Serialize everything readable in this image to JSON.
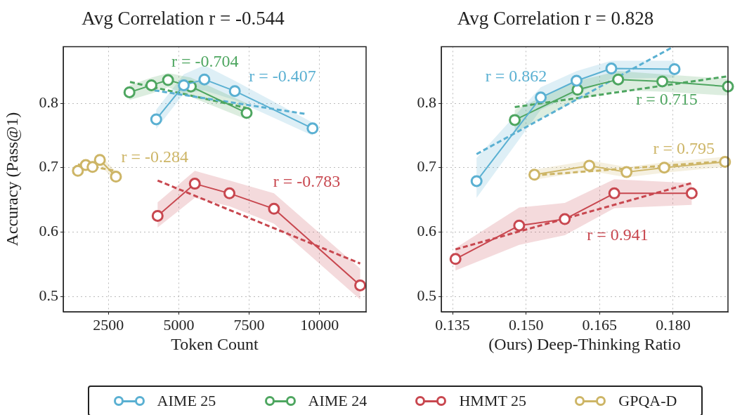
{
  "chart_data": [
    {
      "type": "line",
      "title": "Avg Correlation r = -0.544",
      "xlabel": "Token Count",
      "ylabel": "Accuracy (Pass@1)",
      "xlim": [
        900,
        11650
      ],
      "xticks": [
        2500,
        5000,
        7500,
        10000
      ],
      "ylim": [
        0.476,
        0.888
      ],
      "yticks": [
        0.5,
        0.6,
        0.7,
        0.8
      ],
      "grid": true,
      "legend": "bottom",
      "marker": "circle",
      "line_style": "solid",
      "series": [
        {
          "name": "AIME 25",
          "color": "#5ab0d2",
          "x": [
            4200,
            5180,
            5910,
            6990,
            9750
          ],
          "values": [
            0.775,
            0.828,
            0.837,
            0.819,
            0.761
          ],
          "lower": [
            0.76,
            0.815,
            0.82,
            0.805,
            0.75
          ],
          "upper": [
            0.79,
            0.845,
            0.859,
            0.835,
            0.77
          ]
        },
        {
          "name": "AIME 24",
          "color": "#4ea660",
          "x": [
            3250,
            4030,
            4620,
            5430,
            7410
          ],
          "values": [
            0.817,
            0.828,
            0.836,
            0.826,
            0.785
          ],
          "lower": [
            0.805,
            0.815,
            0.825,
            0.81,
            0.775
          ],
          "upper": [
            0.828,
            0.84,
            0.847,
            0.84,
            0.8
          ]
        },
        {
          "name": "HMMT 25",
          "color": "#c8474f",
          "x": [
            4250,
            5570,
            6800,
            8380,
            11440
          ],
          "values": [
            0.625,
            0.675,
            0.66,
            0.636,
            0.517
          ],
          "lower": [
            0.607,
            0.653,
            0.64,
            0.613,
            0.495
          ],
          "upper": [
            0.646,
            0.695,
            0.68,
            0.66,
            0.543
          ]
        },
        {
          "name": "GPQA-D",
          "color": "#cdb566",
          "x": [
            1420,
            1700,
            1940,
            2200,
            2770
          ],
          "values": [
            0.695,
            0.704,
            0.701,
            0.712,
            0.686
          ],
          "lower": [
            0.687,
            0.696,
            0.693,
            0.704,
            0.678
          ],
          "upper": [
            0.703,
            0.712,
            0.709,
            0.72,
            0.694
          ]
        },
        {
          "type": "line",
          "color": "#5ab0d2",
          "marker": "none",
          "line_style": "dashed",
          "x": [
            4140,
            9550
          ],
          "values": [
            0.82,
            0.783
          ]
        },
        {
          "type": "line",
          "color": "#4ea660",
          "marker": "none",
          "line_style": "dashed",
          "x": [
            3270,
            7380
          ],
          "values": [
            0.833,
            0.793
          ]
        },
        {
          "type": "line",
          "color": "#c8474f",
          "marker": "none",
          "line_style": "dashed",
          "x": [
            4250,
            11440
          ],
          "values": [
            0.68,
            0.551
          ]
        },
        {
          "type": "line",
          "color": "#cdb566",
          "marker": "none",
          "line_style": "dashed",
          "x": [
            1420,
            2770
          ],
          "values": [
            0.705,
            0.695
          ]
        }
      ],
      "annotations": [
        "r = -0.407",
        "r = -0.704",
        "r = -0.783",
        "r = -0.284"
      ]
    },
    {
      "type": "line",
      "title": "Avg Correlation r = 0.828",
      "xlabel": "(Ours) Deep-Thinking Ratio",
      "xlim": [
        0.1327,
        0.1912
      ],
      "xticks": [
        0.135,
        {
          "value": 0.15,
          "label": "0.150"
        },
        0.165,
        {
          "value": 0.18,
          "label": "0.180"
        }
      ],
      "ylim": [
        0.476,
        0.888
      ],
      "yticks": [
        0.5,
        0.6,
        0.7,
        0.8
      ],
      "grid": true,
      "marker": "circle",
      "line_style": "solid",
      "series": [
        {
          "color": "#5ab0d2",
          "x": [
            0.1399,
            0.153,
            0.1603,
            0.1674,
            0.1803
          ],
          "values": [
            0.679,
            0.809,
            0.835,
            0.854,
            0.853
          ],
          "lower": [
            0.653,
            0.79,
            0.815,
            0.838,
            0.84
          ],
          "upper": [
            0.715,
            0.825,
            0.85,
            0.866,
            0.866
          ]
        },
        {
          "color": "#4ea660",
          "x": [
            0.1477,
            0.1605,
            0.1688,
            0.1778,
            0.1912
          ],
          "values": [
            0.774,
            0.821,
            0.837,
            0.834,
            0.826
          ],
          "lower": [
            0.755,
            0.805,
            0.82,
            0.818,
            0.812
          ],
          "upper": [
            0.79,
            0.835,
            0.85,
            0.845,
            0.838
          ]
        },
        {
          "color": "#c8474f",
          "x": [
            0.1356,
            0.1486,
            0.1579,
            0.168,
            0.1838
          ],
          "values": [
            0.558,
            0.61,
            0.62,
            0.66,
            0.66
          ],
          "lower": [
            0.54,
            0.58,
            0.595,
            0.637,
            0.642
          ],
          "upper": [
            0.575,
            0.638,
            0.645,
            0.682,
            0.676
          ]
        },
        {
          "color": "#cdb566",
          "x": [
            0.1517,
            0.1629,
            0.1705,
            0.1782,
            0.1906
          ],
          "values": [
            0.689,
            0.703,
            0.693,
            0.7,
            0.709
          ],
          "lower": [
            0.681,
            0.695,
            0.685,
            0.692,
            0.701
          ],
          "upper": [
            0.697,
            0.711,
            0.701,
            0.708,
            0.717
          ]
        },
        {
          "type": "line",
          "color": "#5ab0d2",
          "marker": "none",
          "line_style": "dashed",
          "x": [
            0.1399,
            0.1796
          ],
          "values": [
            0.721,
            0.886
          ]
        },
        {
          "type": "line",
          "color": "#4ea660",
          "marker": "none",
          "line_style": "dashed",
          "x": [
            0.1477,
            0.1912
          ],
          "values": [
            0.794,
            0.842
          ]
        },
        {
          "type": "line",
          "color": "#c8474f",
          "marker": "none",
          "line_style": "dashed",
          "x": [
            0.1356,
            0.1838
          ],
          "values": [
            0.573,
            0.676
          ]
        },
        {
          "type": "line",
          "color": "#cdb566",
          "marker": "none",
          "line_style": "dashed",
          "x": [
            0.1517,
            0.1906
          ],
          "values": [
            0.688,
            0.71
          ]
        }
      ],
      "annotations": [
        "r = 0.862",
        "r = 0.715",
        "r = 0.941",
        "r = 0.795"
      ]
    }
  ]
}
